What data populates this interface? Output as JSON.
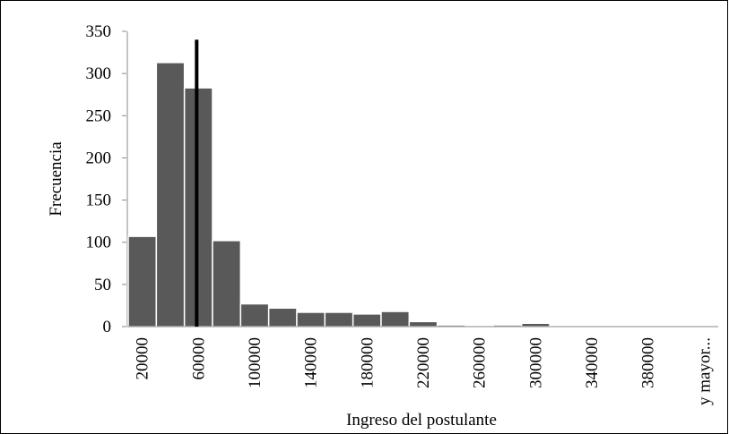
{
  "chart_data": {
    "type": "bar",
    "x_label": "Ingreso del postulante",
    "y_label": "Frecuencia",
    "categories": [
      20000,
      null,
      60000,
      null,
      100000,
      null,
      140000,
      null,
      180000,
      null,
      220000,
      null,
      260000,
      null,
      300000,
      null,
      340000,
      null,
      380000,
      null,
      "y mayor..."
    ],
    "values": [
      107,
      313,
      283,
      102,
      27,
      22,
      17,
      17,
      15,
      18,
      6,
      2,
      1,
      2,
      4,
      1,
      1,
      0,
      0,
      0,
      1
    ],
    "color": "#595959",
    "ylim": [
      0,
      350
    ],
    "yticks": [
      0,
      50,
      100,
      150,
      200,
      250,
      300,
      350
    ],
    "grid": false,
    "marker_line": {
      "category": 60000,
      "value": 340,
      "color": "#000000"
    }
  }
}
